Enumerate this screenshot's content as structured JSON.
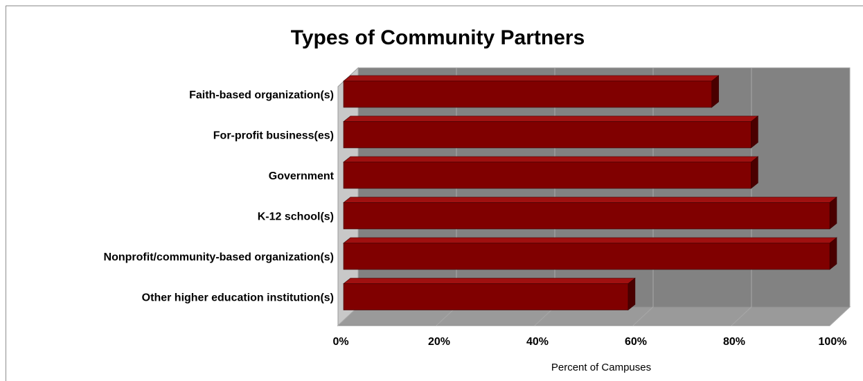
{
  "chart_data": {
    "type": "bar",
    "orientation": "horizontal",
    "title": "Types of Community Partners",
    "xlabel": "Percent of Campuses",
    "ylabel": "",
    "categories": [
      "Faith-based organization(s)",
      "For-profit business(es)",
      "Government",
      "K-12 school(s)",
      "Nonprofit/community-based organization(s)",
      "Other higher education institution(s)"
    ],
    "values": [
      76,
      84,
      84,
      100,
      100,
      59
    ],
    "xlim": [
      0,
      100
    ],
    "x_ticks": [
      "0%",
      "20%",
      "40%",
      "60%",
      "80%",
      "100%"
    ],
    "grid": true,
    "legend": "none",
    "three_d": true,
    "colors": {
      "bar": "#800000",
      "bar_top": "#a01010",
      "bar_side": "#4a0000",
      "plot_back": "#828282",
      "floor": "#9a9a9a"
    }
  }
}
